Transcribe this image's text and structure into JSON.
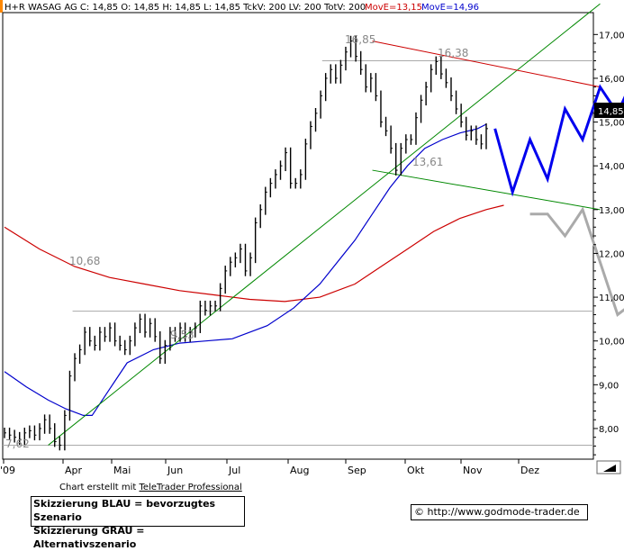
{
  "header": {
    "symbol_line": "H+R WASAG AG C: 14,85 O: 14,85 H: 14,85 L: 14,85 TckV: 200 LV: 200 TotV: 200",
    "ma1_label": "MovE=13,15",
    "ma2_label": "MovE=14,96",
    "ma1_color": "#cc0000",
    "ma2_color": "#0000cc"
  },
  "last_price_label": "14,85",
  "annotations": {
    "high_1": "16,85",
    "high_2": "16,38",
    "low_1": "13,61",
    "level_1": "10,68",
    "low_2": "9,53",
    "low_3": "7,62"
  },
  "footer": {
    "credit_prefix": "Chart erstellt mit ",
    "credit_link": "TeleTrader Professional",
    "legend_blue": "Skizzierung BLAU = bevorzugtes Szenario",
    "legend_grey": "Skizzierung GRAU = Alternativszenario",
    "copyright": "© http://www.godmode-trader.de"
  },
  "chart_data": {
    "type": "line",
    "title": "H+R WASAG AG",
    "y_ticks": [
      "17,00",
      "16,00",
      "15,00",
      "14,00",
      "13,00",
      "12,00",
      "11,00",
      "10,00",
      "9,00",
      "8,00"
    ],
    "x_ticks": [
      "'09",
      "Apr",
      "Mai",
      "Jun",
      "Jul",
      "Aug",
      "Sep",
      "Okt",
      "Nov",
      "Dez"
    ],
    "ylim": [
      7.3,
      17.5
    ],
    "colors": {
      "price": "#000000",
      "ma_red": "#cc0000",
      "ma_blue": "#0000cc",
      "trend_green": "#008800",
      "scenario_blue": "#0000ee",
      "scenario_grey": "#aaaaaa",
      "hline": "#aaaaaa"
    },
    "series": [
      {
        "name": "price",
        "values": [
          7.9,
          7.85,
          7.8,
          7.75,
          7.9,
          7.95,
          7.85,
          8.0,
          8.2,
          8.0,
          7.7,
          7.62,
          8.3,
          9.2,
          9.6,
          9.8,
          10.2,
          10.0,
          9.9,
          10.2,
          10.1,
          10.3,
          10.0,
          9.9,
          9.8,
          10.0,
          10.3,
          10.5,
          10.2,
          10.4,
          10.1,
          9.6,
          9.9,
          10.2,
          10.1,
          10.3,
          10.1,
          10.2,
          10.3,
          10.8,
          10.7,
          10.8,
          10.8,
          11.2,
          11.6,
          11.8,
          11.9,
          12.1,
          11.6,
          11.9,
          12.7,
          13.0,
          13.4,
          13.6,
          13.8,
          14.0,
          14.3,
          13.6,
          13.6,
          13.8,
          14.5,
          14.9,
          15.2,
          15.6,
          16.0,
          16.2,
          16.0,
          16.3,
          16.6,
          16.85,
          16.5,
          16.2,
          15.8,
          16.0,
          15.6,
          15.0,
          14.8,
          14.4,
          13.9,
          14.4,
          14.6,
          14.6,
          15.1,
          15.5,
          15.8,
          16.2,
          16.38,
          16.1,
          15.9,
          15.6,
          15.3,
          15.0,
          14.7,
          14.8,
          14.6,
          14.5,
          14.85
        ]
      },
      {
        "name": "MovE 38 (blue)",
        "values": [
          [
            0,
            9.3
          ],
          [
            5,
            8.95
          ],
          [
            10,
            8.65
          ],
          [
            14,
            8.45
          ],
          [
            18,
            8.3
          ],
          [
            20,
            8.3
          ],
          [
            24,
            8.9
          ],
          [
            28,
            9.5
          ],
          [
            34,
            9.8
          ],
          [
            40,
            9.95
          ],
          [
            46,
            10.0
          ],
          [
            52,
            10.05
          ],
          [
            60,
            10.35
          ],
          [
            66,
            10.75
          ],
          [
            72,
            11.3
          ],
          [
            80,
            12.3
          ],
          [
            84,
            12.9
          ],
          [
            88,
            13.5
          ],
          [
            92,
            14.0
          ],
          [
            96,
            14.4
          ],
          [
            100,
            14.6
          ],
          [
            104,
            14.75
          ],
          [
            108,
            14.85
          ],
          [
            110,
            14.95
          ]
        ]
      },
      {
        "name": "MovE 200 (red)",
        "values": [
          [
            0,
            12.6
          ],
          [
            8,
            12.1
          ],
          [
            16,
            11.7
          ],
          [
            24,
            11.45
          ],
          [
            32,
            11.3
          ],
          [
            40,
            11.15
          ],
          [
            48,
            11.05
          ],
          [
            56,
            10.95
          ],
          [
            64,
            10.9
          ],
          [
            72,
            11.0
          ],
          [
            80,
            11.3
          ],
          [
            86,
            11.7
          ],
          [
            92,
            12.1
          ],
          [
            98,
            12.5
          ],
          [
            104,
            12.8
          ],
          [
            110,
            13.0
          ],
          [
            114,
            13.1
          ]
        ]
      }
    ],
    "trendlines": [
      {
        "from": [
          10,
          7.62
        ],
        "to": [
          136,
          17.7
        ],
        "color": "trend_green"
      },
      {
        "from": [
          84,
          16.85
        ],
        "to": [
          136,
          15.8
        ],
        "color": "ma_red"
      },
      {
        "from": [
          84,
          13.9
        ],
        "to": [
          136,
          13.0
        ],
        "color": "trend_green"
      }
    ],
    "hlines": [
      10.68,
      16.4,
      7.62
    ],
    "scenario_blue": [
      [
        112,
        14.85
      ],
      [
        116,
        13.4
      ],
      [
        120,
        14.6
      ],
      [
        124,
        13.7
      ],
      [
        128,
        15.3
      ],
      [
        132,
        14.6
      ],
      [
        136,
        15.8
      ],
      [
        140,
        15.2
      ],
      [
        144,
        16.1
      ],
      [
        146,
        15.9
      ]
    ],
    "scenario_grey_up": [
      [
        146,
        16.6
      ],
      [
        150,
        16.6
      ],
      [
        154,
        17.3
      ],
      [
        156,
        16.6
      ],
      [
        160,
        17.5
      ]
    ],
    "scenario_grey_down": [
      [
        120,
        12.9
      ],
      [
        124,
        12.9
      ],
      [
        128,
        12.4
      ],
      [
        132,
        13.0
      ],
      [
        140,
        10.6
      ],
      [
        144,
        10.9
      ]
    ]
  }
}
